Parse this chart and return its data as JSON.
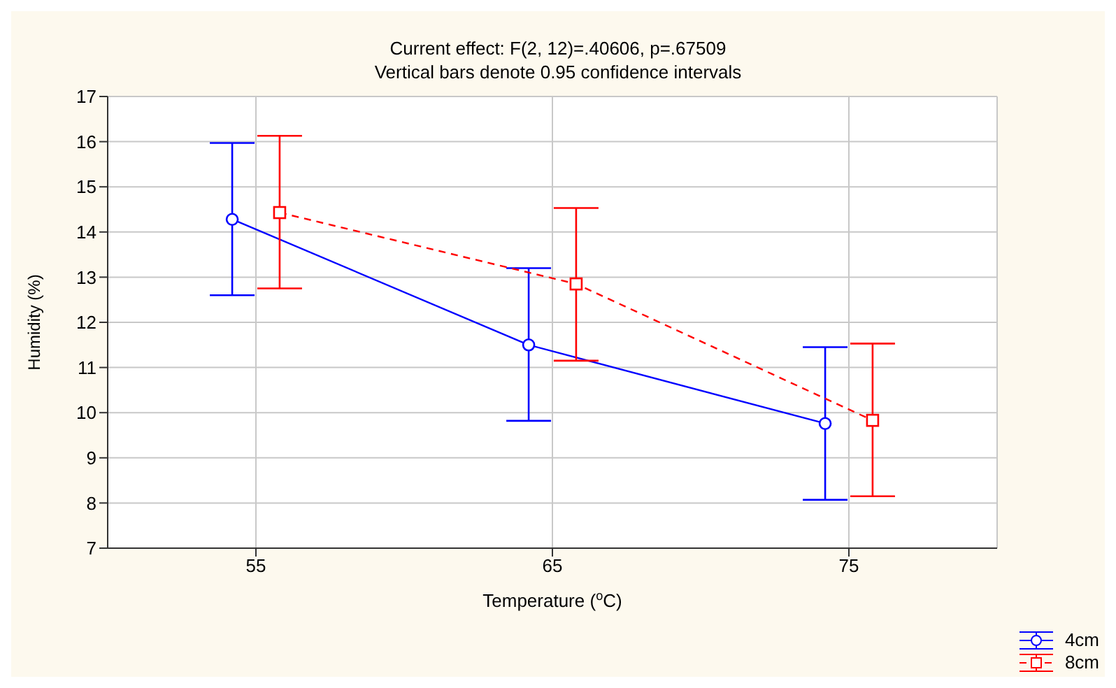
{
  "chart_data": {
    "type": "line",
    "title": "Current effect: F(2, 12)=.40606, p=.67509",
    "subtitle": "Vertical bars denote 0.95 confidence intervals",
    "xlabel": "Temperature ($^{o}$C)",
    "ylabel": "Humidity (%)",
    "xlim": [
      50,
      80
    ],
    "xticks": [
      55,
      65,
      75
    ],
    "ylim": [
      7,
      17
    ],
    "yticks": [
      7,
      8,
      9,
      10,
      11,
      12,
      13,
      14,
      15,
      16,
      17
    ],
    "grid": true,
    "legend": "bottom right",
    "series": [
      {
        "name": "4cm",
        "color": "#0000ff",
        "x": [
          54.2,
          64.2,
          74.2
        ],
        "values": [
          14.28,
          11.5,
          9.76
        ],
        "errors": [
          [
            12.6,
            15.97
          ],
          [
            9.82,
            13.2
          ],
          [
            8.07,
            11.45
          ]
        ],
        "marker": "circle",
        "line_style": "solid"
      },
      {
        "name": "8cm",
        "color": "#ff0000",
        "x": [
          55.8,
          65.8,
          75.8
        ],
        "values": [
          14.43,
          12.85,
          9.83
        ],
        "errors": [
          [
            12.75,
            16.13
          ],
          [
            11.15,
            14.53
          ],
          [
            8.15,
            11.53
          ]
        ],
        "marker": "square",
        "line_style": "dashed"
      }
    ]
  }
}
